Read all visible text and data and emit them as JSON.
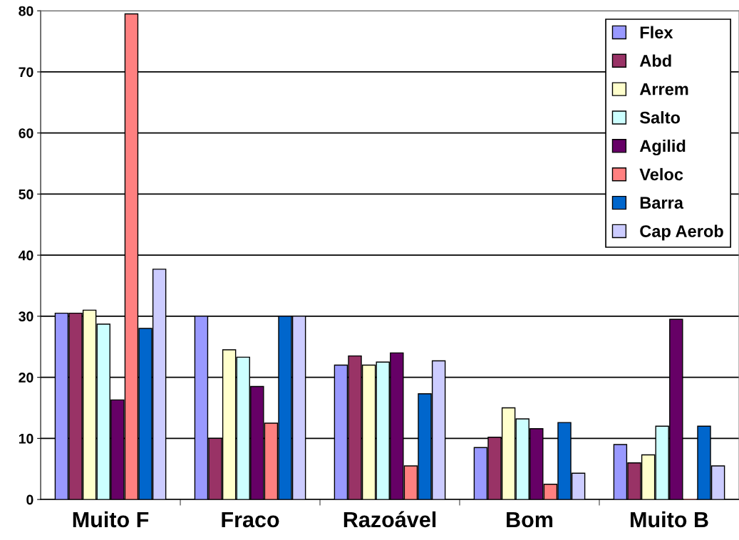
{
  "chart_data": {
    "type": "bar",
    "categories": [
      "Muito F",
      "Fraco",
      "Razoável",
      "Bom",
      "Muito B"
    ],
    "series": [
      {
        "name": "Flex",
        "color": "#9999ff",
        "values": [
          30.5,
          30,
          22,
          8.5,
          9
        ]
      },
      {
        "name": "Abd",
        "color": "#993366",
        "values": [
          30.5,
          10,
          23.5,
          10.2,
          6
        ]
      },
      {
        "name": "Arrem",
        "color": "#ffffcc",
        "values": [
          31,
          24.5,
          22,
          15,
          7.3
        ]
      },
      {
        "name": "Salto",
        "color": "#ccffff",
        "values": [
          28.7,
          23.3,
          22.5,
          13.2,
          12
        ]
      },
      {
        "name": "Agilid",
        "color": "#660066",
        "values": [
          16.3,
          18.5,
          24,
          11.6,
          29.5
        ]
      },
      {
        "name": "Veloc",
        "color": "#ff8080",
        "values": [
          79.5,
          12.5,
          5.5,
          2.5,
          0
        ]
      },
      {
        "name": "Barra",
        "color": "#0066cc",
        "values": [
          28,
          30,
          17.3,
          12.6,
          12
        ]
      },
      {
        "name": "Cap Aerob",
        "color": "#ccccff",
        "values": [
          37.7,
          30,
          22.7,
          4.3,
          5.5
        ]
      }
    ],
    "ylim": [
      0,
      80
    ],
    "yticks": [
      0,
      10,
      20,
      30,
      40,
      50,
      60,
      70,
      80
    ],
    "grid": "y",
    "legend": "top right"
  }
}
